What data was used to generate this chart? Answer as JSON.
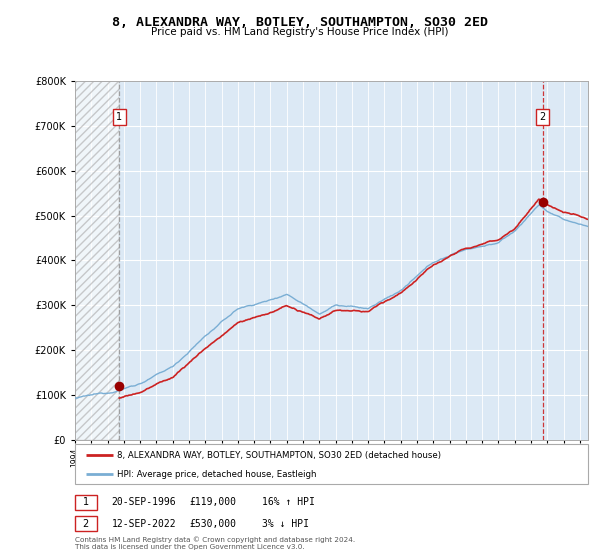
{
  "title": "8, ALEXANDRA WAY, BOTLEY, SOUTHAMPTON, SO30 2ED",
  "subtitle": "Price paid vs. HM Land Registry's House Price Index (HPI)",
  "legend_line1": "8, ALEXANDRA WAY, BOTLEY, SOUTHAMPTON, SO30 2ED (detached house)",
  "legend_line2": "HPI: Average price, detached house, Eastleigh",
  "annotation1_label": "1",
  "annotation1_date": "20-SEP-1996",
  "annotation1_price": "£119,000",
  "annotation1_hpi": "16% ↑ HPI",
  "annotation2_label": "2",
  "annotation2_date": "12-SEP-2022",
  "annotation2_price": "£530,000",
  "annotation2_hpi": "3% ↓ HPI",
  "footer": "Contains HM Land Registry data © Crown copyright and database right 2024.\nThis data is licensed under the Open Government Licence v3.0.",
  "sale1_year": 1996.72,
  "sale1_price": 119000,
  "sale2_year": 2022.72,
  "sale2_price": 530000,
  "hpi_color": "#7aaed4",
  "property_color": "#cc2222",
  "marker_color": "#990000",
  "ylim": [
    0,
    800000
  ],
  "xlim_left": 1994.0,
  "xlim_right": 2025.5,
  "background_color": "#dce9f5",
  "grid_color": "#ffffff"
}
